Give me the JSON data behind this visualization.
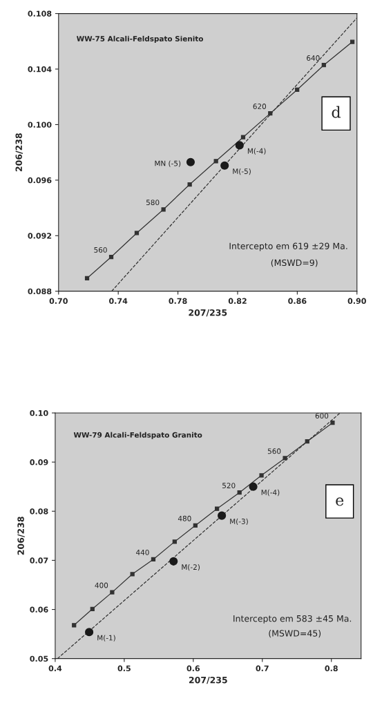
{
  "chart_data": [
    {
      "type": "line",
      "title": "WW-75 Alcali-Feldspato Sienito",
      "xlabel": "207/235",
      "ylabel": "206/238",
      "xlim": [
        0.7,
        0.9
      ],
      "xticks": [
        {
          "value": 0.7,
          "label": "0.70"
        },
        0.74,
        0.78,
        0.82,
        0.86,
        {
          "value": 0.9,
          "label": "0.90"
        }
      ],
      "ylim": [
        0.088,
        0.108
      ],
      "yticks": [
        0.088,
        0.092,
        0.096,
        {
          "value": 0.1,
          "label": "0.100"
        },
        0.104,
        0.108
      ],
      "series": [
        {
          "color": "#333333",
          "marker": "square",
          "line_style": "solid",
          "x": [
            0.7191,
            0.7353,
            0.7524,
            0.7703,
            0.7879,
            0.8055,
            0.8237,
            0.8419,
            0.8599,
            0.8778,
            0.8969
          ],
          "values": [
            0.08893,
            0.09047,
            0.09219,
            0.09389,
            0.09569,
            0.09737,
            0.09909,
            0.10081,
            0.10251,
            0.10429,
            0.10596
          ]
        },
        {
          "color": "#333333",
          "marker": "none",
          "line_style": "dashed",
          "x": [
            0.7356,
            0.9
          ],
          "values": [
            0.088,
            0.10769
          ]
        },
        {
          "type": "scatter",
          "color": "#1a1a1a",
          "marker": "circle",
          "x": [
            0.7885,
            0.8213,
            0.8113
          ],
          "values": [
            0.0973,
            0.09851,
            0.09705
          ]
        }
      ],
      "annotations": [
        "d",
        "Intercepto em 619 ±29 Ma.",
        "(MSWD=9)",
        {
          "text": "560",
          "x": 0.7353,
          "y": 0.09047
        },
        {
          "text": "580",
          "x": 0.7703,
          "y": 0.09389
        },
        {
          "text": "620",
          "x": 0.8419,
          "y": 0.10081
        },
        {
          "text": "640",
          "x": 0.8778,
          "y": 0.10429
        },
        {
          "text": "MN (-5)",
          "x": 0.7885,
          "y": 0.0973
        },
        {
          "text": "M(-4)",
          "x": 0.8213,
          "y": 0.09851
        },
        {
          "text": "M(-5)",
          "x": 0.8113,
          "y": 0.09705
        }
      ]
    },
    {
      "type": "line",
      "title": "WW-79 Alcali-Feldspato Granito",
      "xlabel": "207/235",
      "ylabel": "206/238",
      "xlim": [
        0.4,
        0.843
      ],
      "xticks": [
        0.4,
        0.5,
        0.6,
        0.7,
        0.8
      ],
      "ylim": [
        0.05,
        0.1
      ],
      "yticks": [
        0.05,
        0.06,
        0.07,
        0.08,
        0.09,
        {
          "value": 0.1,
          "label": "0.10"
        }
      ],
      "series": [
        {
          "color": "#333333",
          "marker": "square",
          "line_style": "solid",
          "x": [
            0.4273,
            0.4539,
            0.4825,
            0.5118,
            0.5421,
            0.573,
            0.603,
            0.6343,
            0.6669,
            0.6988,
            0.7328,
            0.765,
            0.8017
          ],
          "values": [
            0.0568,
            0.0601,
            0.0635,
            0.0672,
            0.0702,
            0.0738,
            0.0771,
            0.0805,
            0.0838,
            0.0873,
            0.0908,
            0.0942,
            0.098
          ]
        },
        {
          "color": "#333333",
          "marker": "none",
          "line_style": "dashed",
          "x": [
            0.4033,
            0.8126
          ],
          "values": [
            0.05,
            0.1
          ]
        },
        {
          "type": "scatter",
          "color": "#1a1a1a",
          "marker": "circle",
          "x": [
            0.4492,
            0.5714,
            0.6413,
            0.6868
          ],
          "values": [
            0.0554,
            0.0698,
            0.0791,
            0.085
          ]
        }
      ],
      "annotations": [
        "e",
        "Intercepto em 583 ±45 Ma.",
        "(MSWD=45)",
        {
          "text": "400",
          "x": 0.4825,
          "y": 0.0635
        },
        {
          "text": "440",
          "x": 0.5421,
          "y": 0.0702
        },
        {
          "text": "480",
          "x": 0.603,
          "y": 0.0771
        },
        {
          "text": "520",
          "x": 0.6669,
          "y": 0.0838
        },
        {
          "text": "560",
          "x": 0.7328,
          "y": 0.0908
        },
        {
          "text": "600",
          "x": 0.8017,
          "y": 0.098
        },
        {
          "text": "M(-1)",
          "x": 0.4492,
          "y": 0.0554
        },
        {
          "text": "M(-2)",
          "x": 0.5714,
          "y": 0.0698
        },
        {
          "text": "M(-3)",
          "x": 0.6413,
          "y": 0.0791
        },
        {
          "text": "M(-4)",
          "x": 0.6868,
          "y": 0.085
        }
      ]
    }
  ]
}
